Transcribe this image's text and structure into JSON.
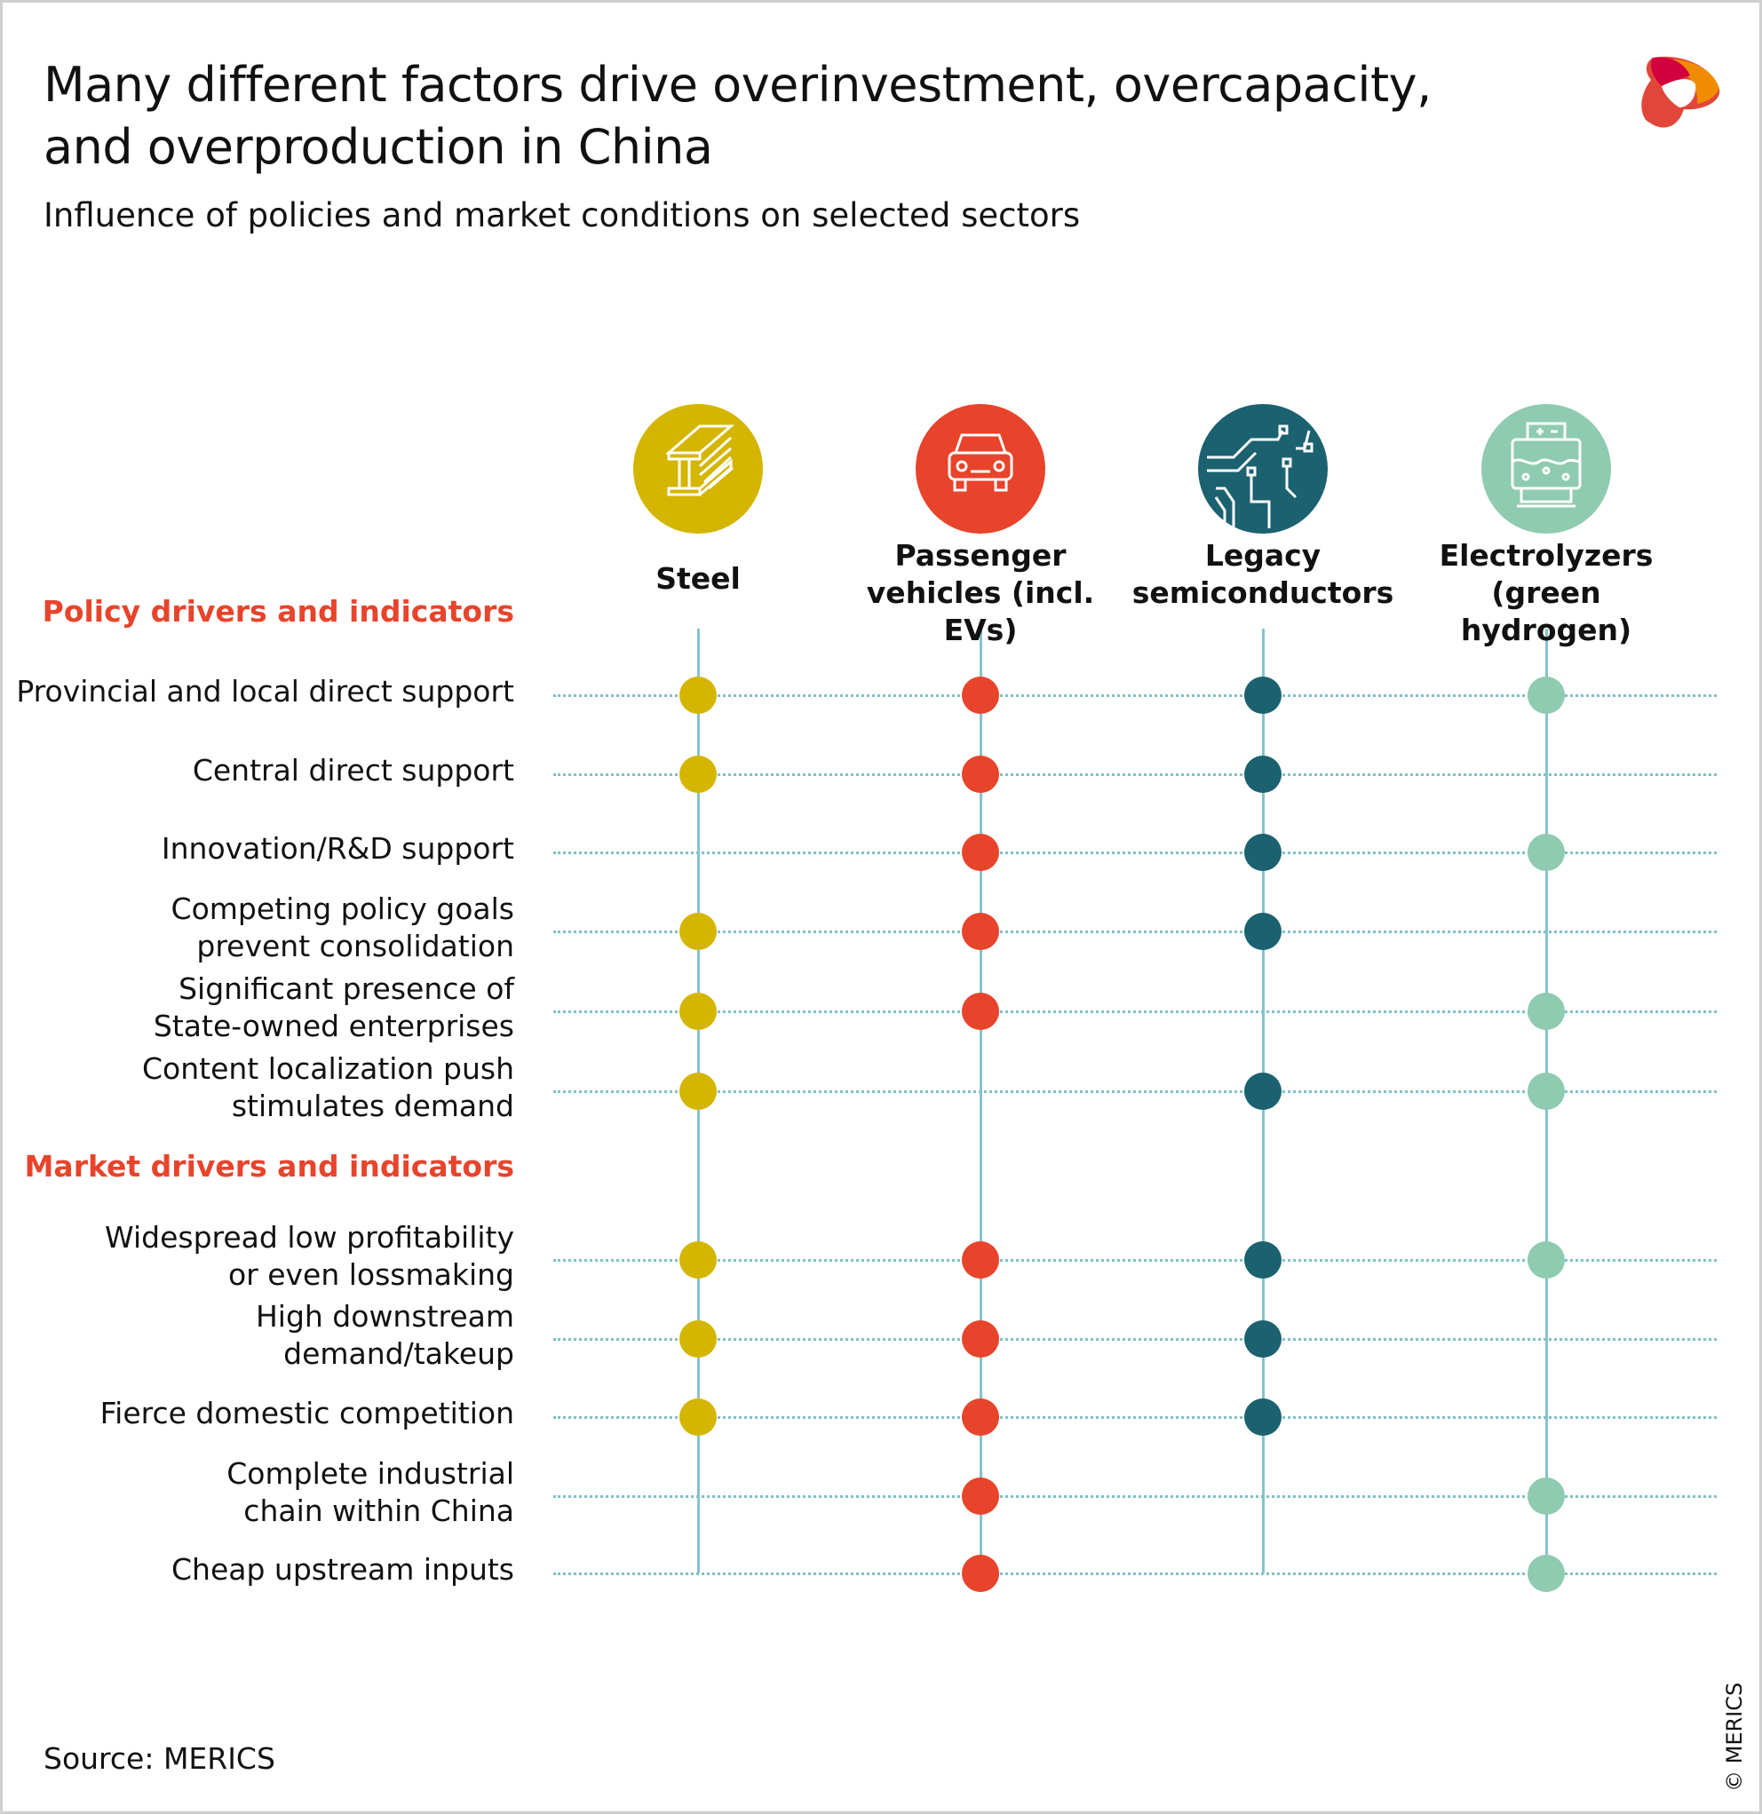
{
  "header": {
    "title": "Many different factors drive overinvestment, overcapacity, and overproduction in China",
    "subtitle": "Influence of policies and market conditions on selected sectors",
    "logo": "MERICS"
  },
  "sectors": [
    {
      "name": "Steel",
      "icon": "steel-beam-icon",
      "color": "#d4b500"
    },
    {
      "name": "Passenger vehicles (incl. EVs)",
      "icon": "car-icon",
      "color": "#e8432b"
    },
    {
      "name": "Legacy semiconductors",
      "icon": "circuit-icon",
      "color": "#1b6170"
    },
    {
      "name": "Electrolyzers (green hydrogen)",
      "icon": "electrolyzer-icon",
      "color": "#8fcbb0"
    }
  ],
  "sections": [
    {
      "title": "Policy drivers and indicators",
      "color": "#e8442c"
    },
    {
      "title": "Market drivers and indicators",
      "color": "#e8442c"
    }
  ],
  "rows": [
    {
      "label": "Provincial and local direct support",
      "section": 0,
      "applies": [
        true,
        true,
        true,
        true
      ]
    },
    {
      "label": "Central direct support",
      "section": 0,
      "applies": [
        true,
        true,
        true,
        false
      ]
    },
    {
      "label": "Innovation/R&D support",
      "section": 0,
      "applies": [
        false,
        true,
        true,
        true
      ]
    },
    {
      "label": "Competing policy goals\nprevent consolidation",
      "section": 0,
      "applies": [
        true,
        true,
        true,
        false
      ]
    },
    {
      "label": "Significant presence of\nState-owned enterprises",
      "section": 0,
      "applies": [
        true,
        true,
        false,
        true
      ]
    },
    {
      "label": "Content localization push\nstimulates demand",
      "section": 0,
      "applies": [
        true,
        false,
        true,
        true
      ]
    },
    {
      "label": "Widespread low profitability\nor even lossmaking",
      "section": 1,
      "applies": [
        true,
        true,
        true,
        true
      ]
    },
    {
      "label": "High downstream\ndemand/takeup",
      "section": 1,
      "applies": [
        true,
        true,
        true,
        false
      ]
    },
    {
      "label": "Fierce domestic competition",
      "section": 1,
      "applies": [
        true,
        true,
        true,
        false
      ]
    },
    {
      "label": "Complete industrial\nchain within China",
      "section": 1,
      "applies": [
        false,
        true,
        false,
        true
      ]
    },
    {
      "label": "Cheap upstream inputs",
      "section": 1,
      "applies": [
        false,
        true,
        false,
        true
      ]
    }
  ],
  "footer": {
    "source": "Source: MERICS",
    "copyright": "© MERICS"
  }
}
